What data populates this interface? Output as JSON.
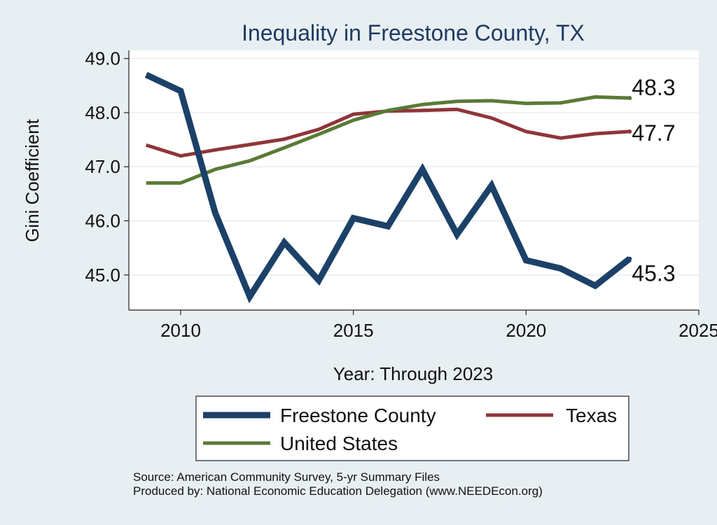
{
  "chart_data": {
    "type": "line",
    "title": "Inequality in Freestone County, TX",
    "xlabel": "Year: Through 2023",
    "ylabel": "Gini Coefficient",
    "xlim": [
      2008.5,
      2025
    ],
    "ylim": [
      44.35,
      49.15
    ],
    "x_ticks": [
      2010,
      2015,
      2020,
      2025
    ],
    "y_ticks": [
      45.0,
      46.0,
      47.0,
      48.0,
      49.0
    ],
    "y_tick_labels": [
      "45.0",
      "46.0",
      "47.0",
      "48.0",
      "49.0"
    ],
    "grid": true,
    "x": [
      2009,
      2010,
      2011,
      2012,
      2013,
      2014,
      2015,
      2016,
      2017,
      2018,
      2019,
      2020,
      2021,
      2022,
      2023
    ],
    "series": [
      {
        "name": "Freestone County",
        "color": "#1c4168",
        "values": [
          48.7,
          48.4,
          46.15,
          44.6,
          45.6,
          44.9,
          46.05,
          45.9,
          46.95,
          45.75,
          46.65,
          45.27,
          45.12,
          44.8,
          45.3
        ],
        "end_label": "45.3"
      },
      {
        "name": "Texas",
        "color": "#8f3539",
        "values": [
          47.4,
          47.2,
          47.31,
          47.41,
          47.51,
          47.69,
          47.97,
          48.03,
          48.04,
          48.06,
          47.9,
          47.65,
          47.53,
          47.61,
          47.65
        ],
        "end_label": "47.7"
      },
      {
        "name": "United States",
        "color": "#5a7a36",
        "values": [
          46.7,
          46.7,
          46.95,
          47.11,
          47.35,
          47.6,
          47.86,
          48.04,
          48.15,
          48.21,
          48.22,
          48.17,
          48.18,
          48.29,
          48.27
        ],
        "end_label": "48.3"
      }
    ],
    "legend": {
      "placement": "bottom",
      "entries": [
        "Freestone County",
        "Texas",
        "United States"
      ]
    },
    "notes": [
      "Source: American Community Survey, 5-yr Summary Files",
      "Produced by: National Economic Education Delegation (www.NEEDEcon.org)"
    ]
  }
}
